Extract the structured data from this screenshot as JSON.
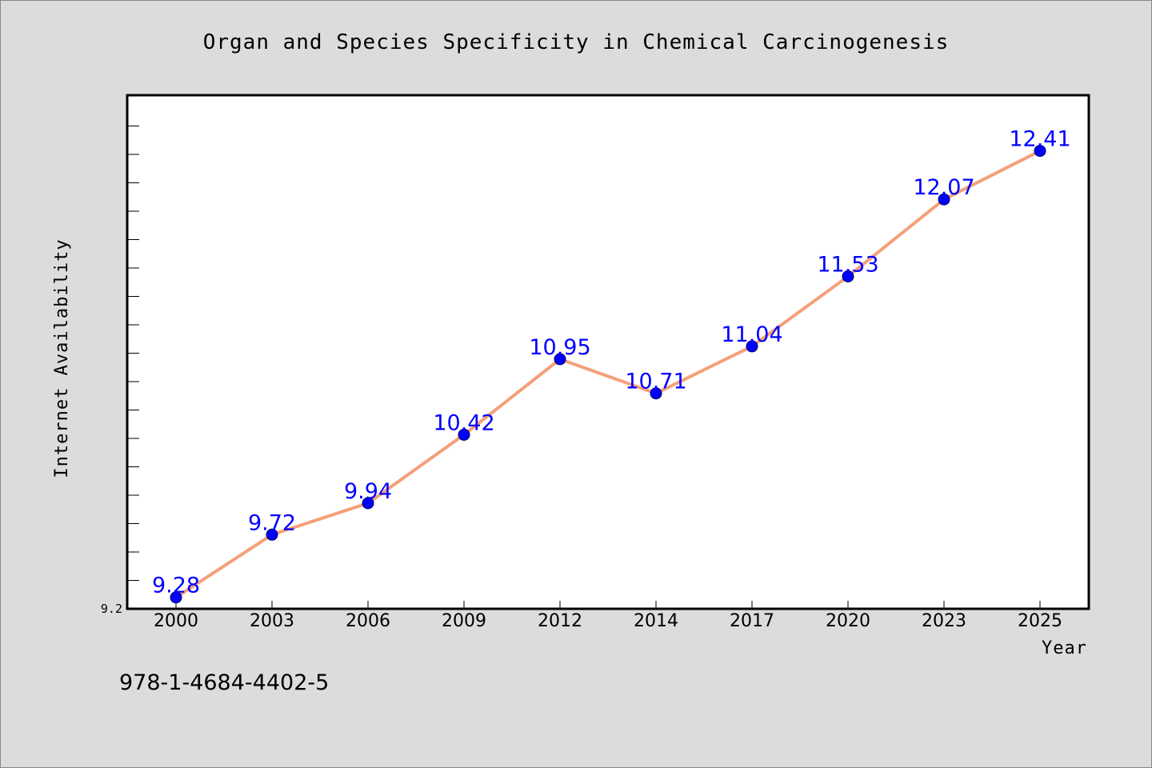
{
  "chart_data": {
    "type": "line",
    "title": "Organ and Species Specificity in Chemical Carcinogenesis",
    "xlabel": "Year",
    "ylabel": "Internet Availability",
    "categories": [
      "2000",
      "2003",
      "2006",
      "2009",
      "2012",
      "2014",
      "2017",
      "2020",
      "2023",
      "2025"
    ],
    "series": [
      {
        "values": [
          9.28,
          9.72,
          9.94,
          10.42,
          10.95,
          10.71,
          11.04,
          11.53,
          12.07,
          12.41
        ]
      }
    ],
    "data_labels": [
      "9.28",
      "9.72",
      "9.94",
      "10.42",
      "10.95",
      "10.71",
      "11.04",
      "11.53",
      "12.07",
      "12.41"
    ],
    "ylim": [
      9.2,
      12.8
    ],
    "yticks": [
      {
        "value": 9.2,
        "label": "9.2"
      }
    ],
    "grid": false,
    "legend": "none",
    "colors": {
      "line": "#f4a07a",
      "marker": "#0000ff",
      "label": "#0000ff",
      "background": "#dcdcdc",
      "plot_background": "#ffffff"
    }
  },
  "footer": {
    "isbn": "978-1-4684-4402-5"
  }
}
